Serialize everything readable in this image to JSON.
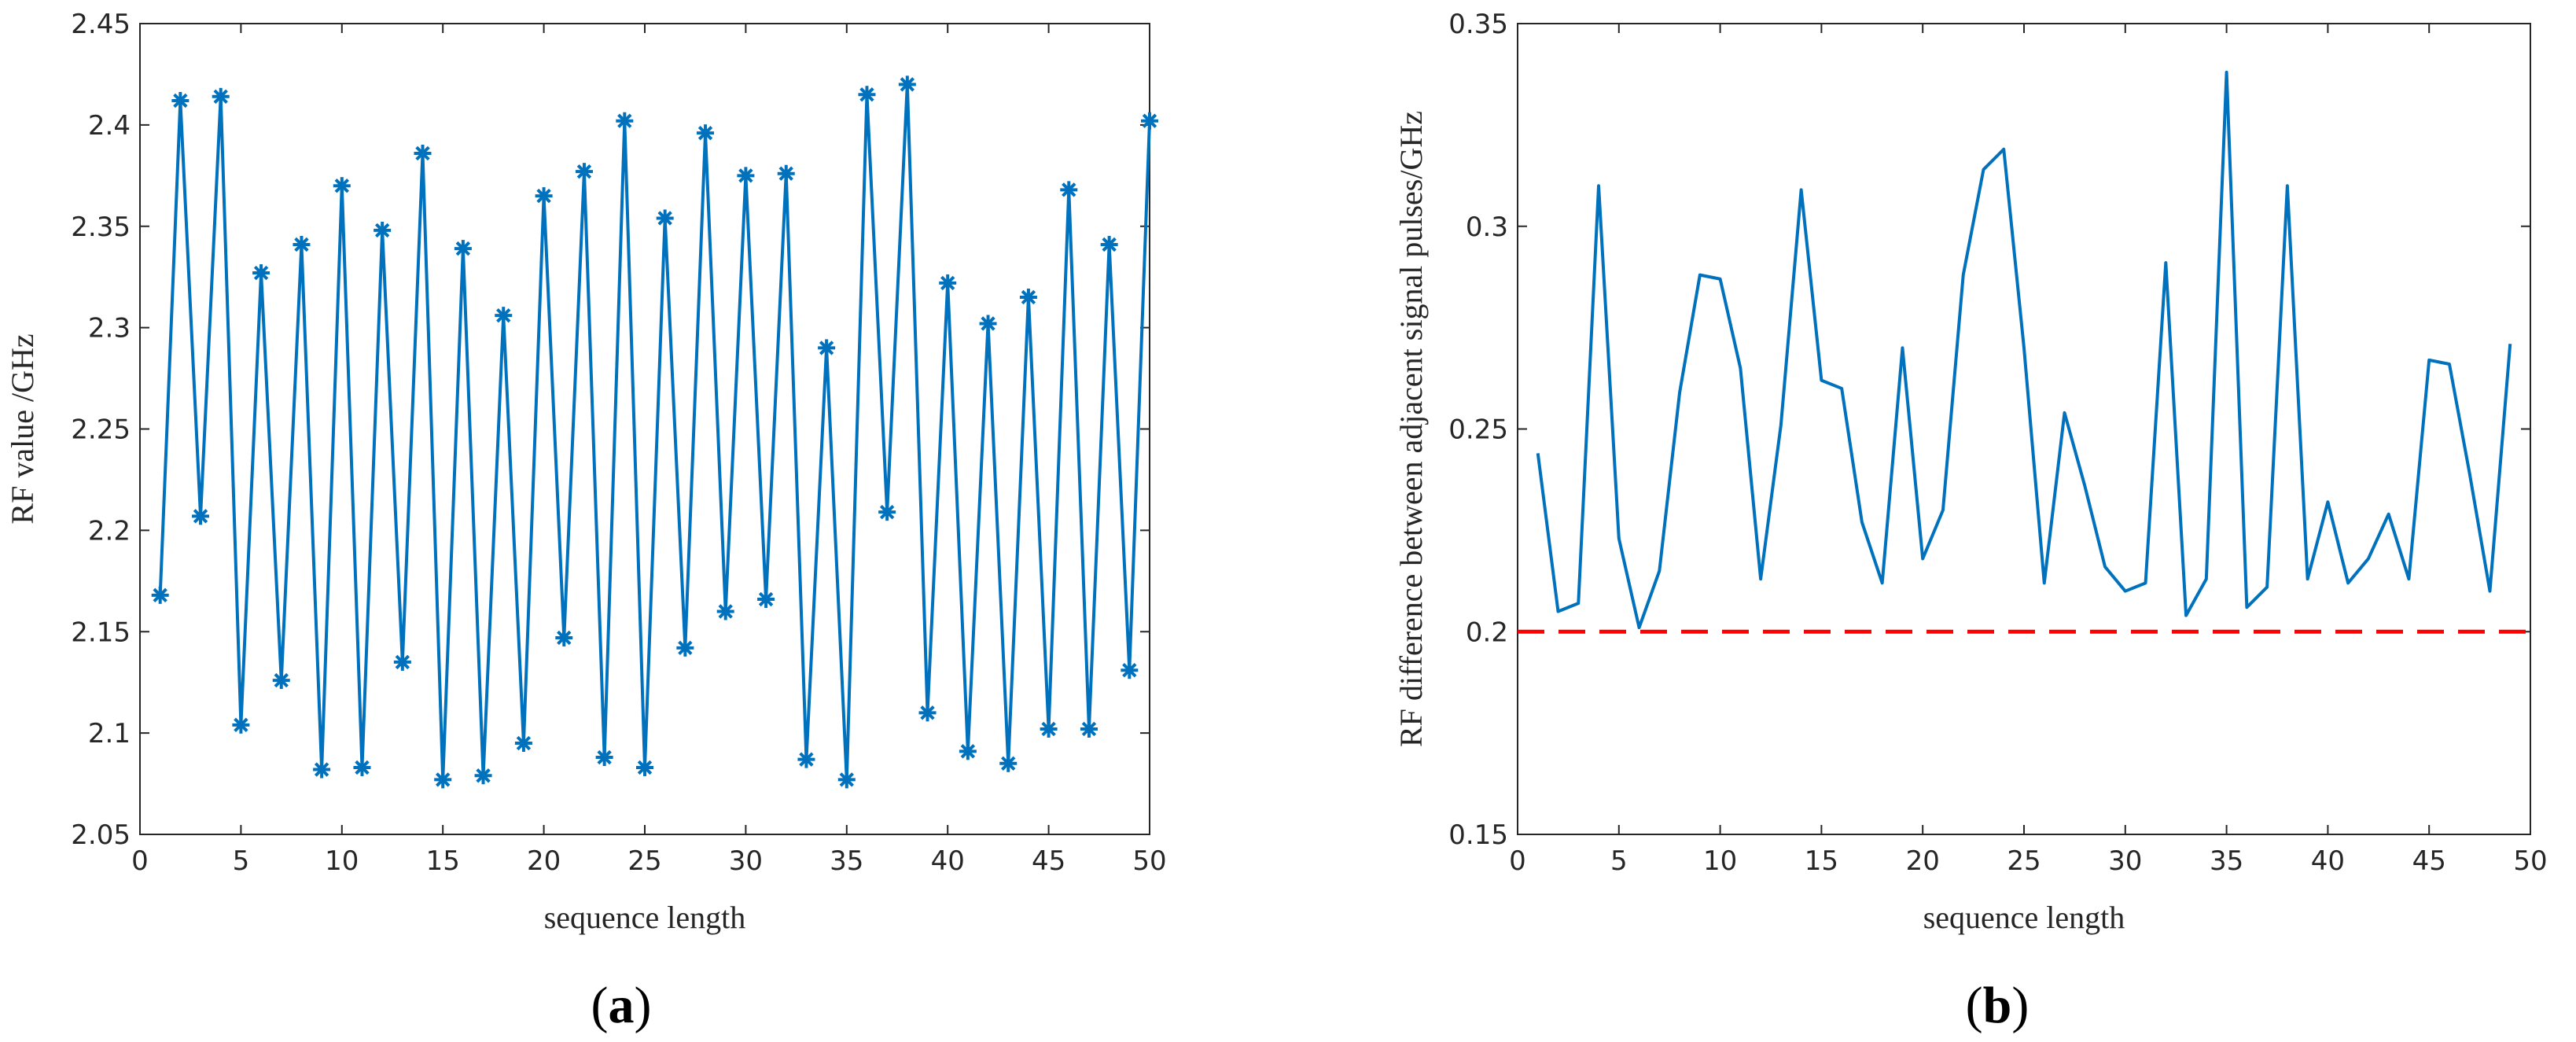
{
  "colors": {
    "series": "#0072BD",
    "threshold": "#FF0000",
    "axis": "#262626"
  },
  "chart_data": [
    {
      "type": "line",
      "panel_label": "a",
      "title": "",
      "xlabel": "sequence length",
      "ylabel": "RF value /GHz",
      "xlim": [
        0,
        50
      ],
      "ylim": [
        2.05,
        2.45
      ],
      "xticks": [
        0,
        5,
        10,
        15,
        20,
        25,
        30,
        35,
        40,
        45,
        50
      ],
      "yticks": [
        2.05,
        2.1,
        2.15,
        2.2,
        2.25,
        2.3,
        2.35,
        2.4,
        2.45
      ],
      "xtick_labels": [
        "0",
        "5",
        "10",
        "15",
        "20",
        "25",
        "30",
        "35",
        "40",
        "45",
        "50"
      ],
      "ytick_labels": [
        "2.05",
        "2.1",
        "2.15",
        "2.2",
        "2.25",
        "2.3",
        "2.35",
        "2.4",
        "2.45"
      ],
      "grid": false,
      "marker": "asterisk",
      "series": [
        {
          "name": "RF value",
          "x": [
            1,
            2,
            3,
            4,
            5,
            6,
            7,
            8,
            9,
            10,
            11,
            12,
            13,
            14,
            15,
            16,
            17,
            18,
            19,
            20,
            21,
            22,
            23,
            24,
            25,
            26,
            27,
            28,
            29,
            30,
            31,
            32,
            33,
            34,
            35,
            36,
            37,
            38,
            39,
            40,
            41,
            42,
            43,
            44,
            45,
            46,
            47,
            48,
            49,
            50
          ],
          "values": [
            2.168,
            2.412,
            2.207,
            2.414,
            2.104,
            2.327,
            2.126,
            2.341,
            2.082,
            2.37,
            2.083,
            2.348,
            2.135,
            2.386,
            2.077,
            2.339,
            2.079,
            2.306,
            2.095,
            2.365,
            2.147,
            2.377,
            2.088,
            2.402,
            2.083,
            2.354,
            2.142,
            2.396,
            2.16,
            2.375,
            2.166,
            2.376,
            2.087,
            2.29,
            2.077,
            2.415,
            2.209,
            2.42,
            2.11,
            2.322,
            2.091,
            2.302,
            2.085,
            2.315,
            2.102,
            2.368,
            2.102,
            2.341,
            2.131,
            2.402
          ]
        }
      ]
    },
    {
      "type": "line",
      "panel_label": "b",
      "title": "",
      "xlabel": "sequence length",
      "ylabel": "RF difference between adjacent signal pulses/GHz",
      "xlim": [
        0,
        50
      ],
      "ylim": [
        0.15,
        0.35
      ],
      "xticks": [
        0,
        5,
        10,
        15,
        20,
        25,
        30,
        35,
        40,
        45,
        50
      ],
      "yticks": [
        0.15,
        0.2,
        0.25,
        0.3,
        0.35
      ],
      "xtick_labels": [
        "0",
        "5",
        "10",
        "15",
        "20",
        "25",
        "30",
        "35",
        "40",
        "45",
        "50"
      ],
      "ytick_labels": [
        "0.15",
        "0.2",
        "0.25",
        "0.3",
        "0.35"
      ],
      "grid": false,
      "series": [
        {
          "name": "RF difference",
          "x": [
            1,
            2,
            3,
            4,
            5,
            6,
            7,
            8,
            9,
            10,
            11,
            12,
            13,
            14,
            15,
            16,
            17,
            18,
            19,
            20,
            21,
            22,
            23,
            24,
            25,
            26,
            27,
            28,
            29,
            30,
            31,
            32,
            33,
            34,
            35,
            36,
            37,
            38,
            39,
            40,
            41,
            42,
            43,
            44,
            45,
            46,
            47,
            48,
            49
          ],
          "values": [
            0.244,
            0.205,
            0.207,
            0.31,
            0.223,
            0.201,
            0.215,
            0.259,
            0.288,
            0.287,
            0.265,
            0.213,
            0.251,
            0.309,
            0.262,
            0.26,
            0.227,
            0.212,
            0.27,
            0.218,
            0.23,
            0.288,
            0.314,
            0.319,
            0.27,
            0.212,
            0.254,
            0.236,
            0.216,
            0.21,
            0.212,
            0.291,
            0.204,
            0.213,
            0.338,
            0.206,
            0.211,
            0.31,
            0.213,
            0.232,
            0.212,
            0.218,
            0.229,
            0.213,
            0.267,
            0.266,
            0.239,
            0.21,
            0.271
          ]
        }
      ],
      "reference_line": {
        "y": 0.2,
        "style": "dashed",
        "color": "red"
      }
    }
  ]
}
